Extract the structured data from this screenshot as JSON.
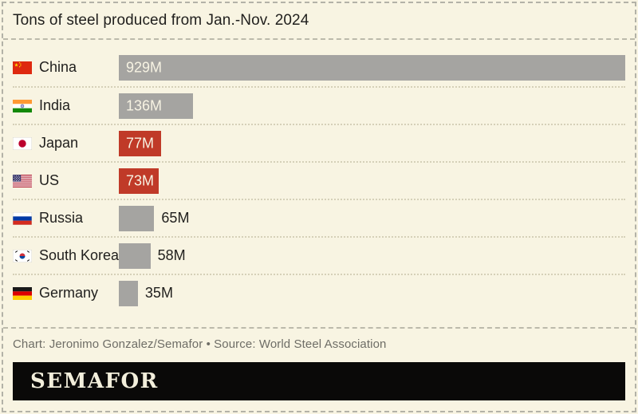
{
  "title": "Tons of steel produced from Jan.-Nov. 2024",
  "colors": {
    "background": "#f8f4e2",
    "bar_default": "#a5a4a1",
    "bar_highlight": "#c03a28",
    "value_inside_text": "#f7f3e3",
    "value_outside_text": "#201f1d",
    "logo_background": "#0a0908",
    "logo_text": "#f2eedb"
  },
  "chart_data": {
    "type": "bar",
    "orientation": "horizontal",
    "title": "Tons of steel produced from Jan.-Nov. 2024",
    "unit": "million tons",
    "categories": [
      "China",
      "India",
      "Japan",
      "US",
      "Russia",
      "South Korea",
      "Germany"
    ],
    "values": [
      929,
      136,
      77,
      73,
      65,
      58,
      35
    ],
    "value_labels": [
      "929M",
      "136M",
      "77M",
      "73M",
      "65M",
      "58M",
      "35M"
    ],
    "highlighted_categories": [
      "Japan",
      "US"
    ],
    "xmax": 929,
    "grid": false,
    "legend": false,
    "rows": [
      {
        "country": "China",
        "flag": "flag-china",
        "value": 929,
        "label": "929M",
        "highlight": false,
        "label_position": "inside"
      },
      {
        "country": "India",
        "flag": "flag-india",
        "value": 136,
        "label": "136M",
        "highlight": false,
        "label_position": "inside"
      },
      {
        "country": "Japan",
        "flag": "flag-japan",
        "value": 77,
        "label": "77M",
        "highlight": true,
        "label_position": "inside"
      },
      {
        "country": "US",
        "flag": "flag-us",
        "value": 73,
        "label": "73M",
        "highlight": true,
        "label_position": "inside"
      },
      {
        "country": "Russia",
        "flag": "flag-russia",
        "value": 65,
        "label": "65M",
        "highlight": false,
        "label_position": "outside"
      },
      {
        "country": "South Korea",
        "flag": "flag-south-korea",
        "value": 58,
        "label": "58M",
        "highlight": false,
        "label_position": "outside"
      },
      {
        "country": "Germany",
        "flag": "flag-germany",
        "value": 35,
        "label": "35M",
        "highlight": false,
        "label_position": "outside"
      }
    ]
  },
  "footer": {
    "credit": "Chart: Jeronimo Gonzalez/Semafor • Source: World Steel Association",
    "logo": "SEMAFOR"
  }
}
